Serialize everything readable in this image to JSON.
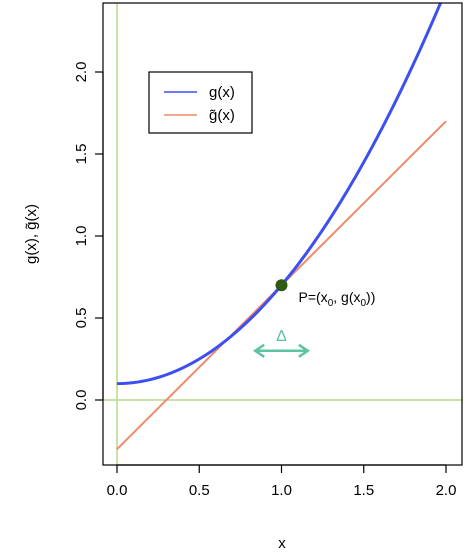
{
  "chart_data": {
    "type": "line",
    "title": "",
    "xlabel": "x",
    "ylabel": "g(x), g̃(x)",
    "xlim": [
      0.0,
      2.0
    ],
    "ylim": [
      -0.3,
      2.3
    ],
    "x_ticks": [
      "0.0",
      "0.5",
      "1.0",
      "1.5",
      "2.0"
    ],
    "y_ticks": [
      "0.0",
      "0.5",
      "1.0",
      "1.5",
      "2.0"
    ],
    "grid": false,
    "legend_position": "top-left",
    "series": [
      {
        "name": "g(x)",
        "color": "#3d4ff0",
        "x": [
          0.0,
          0.25,
          0.5,
          0.75,
          1.0,
          1.25,
          1.5,
          1.75,
          2.0
        ],
        "y": [
          0.1,
          0.1813,
          0.3,
          0.4688,
          0.7,
          1.0063,
          1.4,
          1.8938,
          2.5
        ]
      },
      {
        "name": "g̃(x)",
        "color": "#f08a6a",
        "x": [
          0.0,
          2.0
        ],
        "y": [
          -0.3,
          1.7
        ]
      }
    ],
    "reference_lines": {
      "color": "#b5d98a",
      "vertical_x": 0.0,
      "horizontal_y": 0.0
    },
    "point": {
      "x": 1.0,
      "y": 0.7,
      "color": "#2e5a12",
      "label_prefix": "P=(x",
      "label_sub1": "0",
      "label_mid": ", g(x",
      "label_sub2": "0",
      "label_suffix": "))"
    },
    "delta": {
      "label": "Δ",
      "color": "#5ec4a0",
      "x_center": 1.0,
      "y": 0.3,
      "half_width": 0.16
    }
  }
}
